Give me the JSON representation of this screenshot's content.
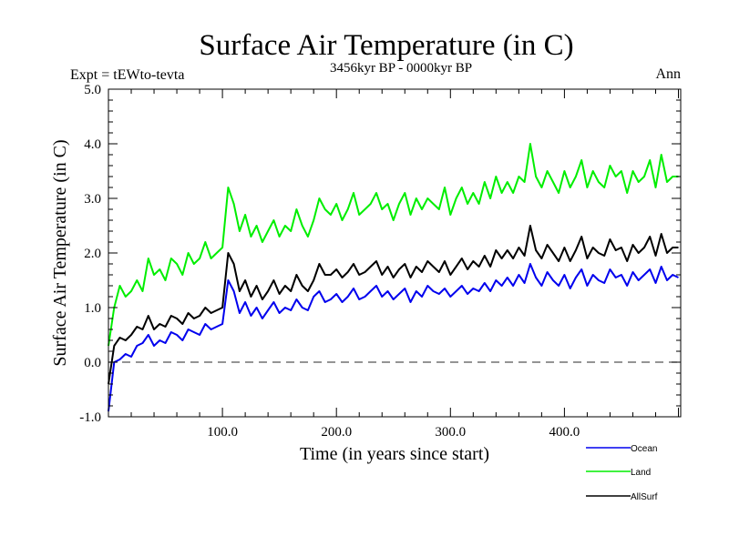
{
  "chart_data": {
    "type": "line",
    "title": "Surface Air Temperature (in C)",
    "subtitle": "3456kyr BP - 0000kyr BP",
    "left_label": "Expt = tEWto-tevta",
    "right_label": "Ann",
    "xlabel": "Time (in years since start)",
    "ylabel": "Surface Air Temperature (in C)",
    "xlim": [
      0,
      502
    ],
    "ylim": [
      -1.0,
      5.0
    ],
    "x_ticks": [
      100,
      200,
      300,
      400
    ],
    "x_tick_labels": [
      "100.0",
      "200.0",
      "300.0",
      "400.0"
    ],
    "y_ticks": [
      -1,
      0,
      1,
      2,
      3,
      4,
      5
    ],
    "y_tick_labels": [
      "-1.0",
      "0.0",
      "1.0",
      "2.0",
      "3.0",
      "4.0",
      "5.0"
    ],
    "reference_line": {
      "y": 0.0,
      "style": "dashed",
      "color": "#555555"
    },
    "legend": {
      "placement": "bottom-right"
    },
    "x": [
      0,
      5,
      10,
      15,
      20,
      25,
      30,
      35,
      40,
      45,
      50,
      55,
      60,
      65,
      70,
      75,
      80,
      85,
      90,
      95,
      100,
      105,
      110,
      115,
      120,
      125,
      130,
      135,
      140,
      145,
      150,
      155,
      160,
      165,
      170,
      175,
      180,
      185,
      190,
      195,
      200,
      205,
      210,
      215,
      220,
      225,
      230,
      235,
      240,
      245,
      250,
      255,
      260,
      265,
      270,
      275,
      280,
      285,
      290,
      295,
      300,
      305,
      310,
      315,
      320,
      325,
      330,
      335,
      340,
      345,
      350,
      355,
      360,
      365,
      370,
      375,
      380,
      385,
      390,
      395,
      400,
      405,
      410,
      415,
      420,
      425,
      430,
      435,
      440,
      445,
      450,
      455,
      460,
      465,
      470,
      475,
      480,
      485,
      490,
      495,
      500
    ],
    "series": [
      {
        "name": "Ocean",
        "color": "#0000ee",
        "values": [
          -0.9,
          0.0,
          0.05,
          0.15,
          0.1,
          0.3,
          0.35,
          0.5,
          0.3,
          0.4,
          0.35,
          0.55,
          0.5,
          0.4,
          0.6,
          0.55,
          0.5,
          0.7,
          0.6,
          0.65,
          0.7,
          1.5,
          1.3,
          0.9,
          1.1,
          0.85,
          1.0,
          0.8,
          0.95,
          1.1,
          0.9,
          1.0,
          0.95,
          1.15,
          1.0,
          0.95,
          1.2,
          1.3,
          1.1,
          1.15,
          1.25,
          1.1,
          1.2,
          1.35,
          1.15,
          1.2,
          1.3,
          1.4,
          1.2,
          1.3,
          1.15,
          1.25,
          1.35,
          1.1,
          1.3,
          1.2,
          1.4,
          1.3,
          1.25,
          1.35,
          1.2,
          1.3,
          1.4,
          1.25,
          1.35,
          1.3,
          1.45,
          1.3,
          1.5,
          1.4,
          1.55,
          1.4,
          1.6,
          1.45,
          1.8,
          1.55,
          1.4,
          1.65,
          1.5,
          1.4,
          1.6,
          1.35,
          1.55,
          1.7,
          1.4,
          1.6,
          1.5,
          1.45,
          1.7,
          1.55,
          1.6,
          1.4,
          1.65,
          1.5,
          1.6,
          1.7,
          1.45,
          1.75,
          1.5,
          1.6,
          1.55
        ]
      },
      {
        "name": "Land",
        "color": "#00ee00",
        "values": [
          0.3,
          1.0,
          1.4,
          1.2,
          1.3,
          1.5,
          1.3,
          1.9,
          1.6,
          1.7,
          1.5,
          1.9,
          1.8,
          1.6,
          2.0,
          1.8,
          1.9,
          2.2,
          1.9,
          2.0,
          2.1,
          3.2,
          2.9,
          2.4,
          2.7,
          2.3,
          2.5,
          2.2,
          2.4,
          2.6,
          2.3,
          2.5,
          2.4,
          2.8,
          2.5,
          2.3,
          2.6,
          3.0,
          2.8,
          2.7,
          2.9,
          2.6,
          2.8,
          3.1,
          2.7,
          2.8,
          2.9,
          3.1,
          2.8,
          2.9,
          2.6,
          2.9,
          3.1,
          2.7,
          3.0,
          2.8,
          3.0,
          2.9,
          2.8,
          3.2,
          2.7,
          3.0,
          3.2,
          2.9,
          3.1,
          2.9,
          3.3,
          3.0,
          3.4,
          3.1,
          3.3,
          3.1,
          3.4,
          3.3,
          4.0,
          3.4,
          3.2,
          3.5,
          3.3,
          3.1,
          3.5,
          3.2,
          3.4,
          3.7,
          3.2,
          3.5,
          3.3,
          3.2,
          3.6,
          3.4,
          3.5,
          3.1,
          3.5,
          3.3,
          3.4,
          3.7,
          3.2,
          3.8,
          3.3,
          3.4,
          3.4
        ]
      },
      {
        "name": "AllSurf",
        "color": "#000000",
        "values": [
          -0.4,
          0.3,
          0.45,
          0.4,
          0.5,
          0.65,
          0.6,
          0.85,
          0.6,
          0.7,
          0.65,
          0.85,
          0.8,
          0.7,
          0.9,
          0.8,
          0.85,
          1.0,
          0.9,
          0.95,
          1.0,
          2.0,
          1.8,
          1.3,
          1.5,
          1.2,
          1.4,
          1.15,
          1.3,
          1.5,
          1.25,
          1.4,
          1.3,
          1.6,
          1.4,
          1.3,
          1.5,
          1.8,
          1.6,
          1.6,
          1.7,
          1.55,
          1.65,
          1.8,
          1.6,
          1.65,
          1.75,
          1.85,
          1.6,
          1.75,
          1.55,
          1.7,
          1.8,
          1.55,
          1.75,
          1.65,
          1.85,
          1.75,
          1.65,
          1.85,
          1.6,
          1.75,
          1.9,
          1.7,
          1.85,
          1.75,
          1.95,
          1.75,
          2.05,
          1.9,
          2.05,
          1.9,
          2.1,
          1.95,
          2.5,
          2.05,
          1.9,
          2.15,
          2.0,
          1.85,
          2.1,
          1.85,
          2.05,
          2.3,
          1.9,
          2.1,
          2.0,
          1.95,
          2.25,
          2.05,
          2.1,
          1.85,
          2.15,
          2.0,
          2.1,
          2.3,
          1.95,
          2.35,
          2.0,
          2.1,
          2.1
        ]
      }
    ]
  }
}
